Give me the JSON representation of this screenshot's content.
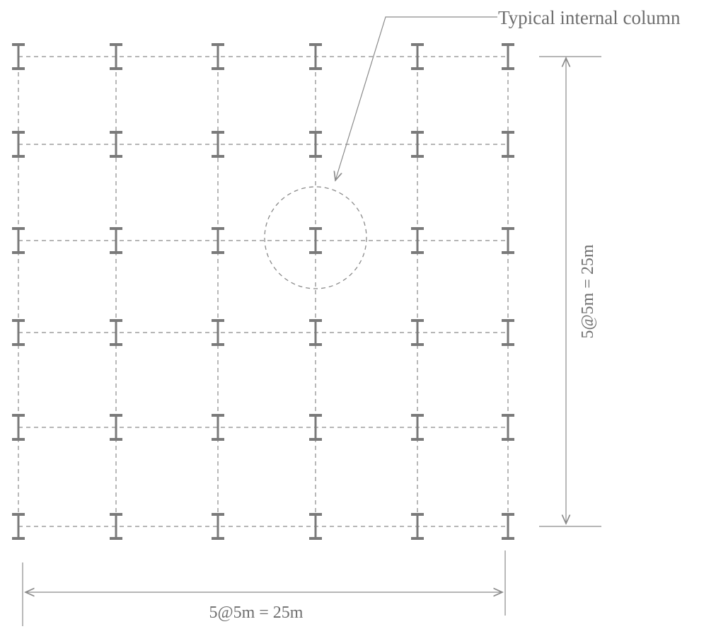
{
  "diagram": {
    "callout": {
      "label": "Typical internal column"
    },
    "horizontal_dimension": {
      "label": "5@5m = 25m"
    },
    "vertical_dimension": {
      "label": "5@5m = 25m"
    },
    "grid": {
      "columns": 6,
      "rows": 6
    },
    "colors": {
      "line": "#8a8a8a",
      "column": "#7a7a7a",
      "text": "#6e6e6e"
    }
  }
}
